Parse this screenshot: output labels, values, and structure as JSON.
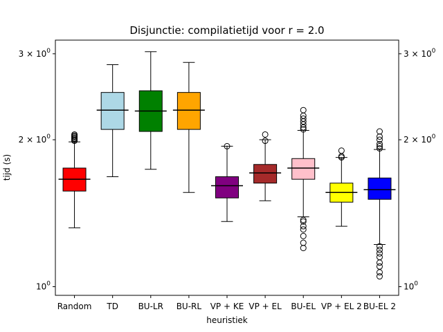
{
  "chart_data": {
    "type": "box",
    "title": "Disjunctie: compilatietijd voor r = 2.0",
    "xlabel": "heuristiek",
    "ylabel": "tijd (s)",
    "y_scale": "log",
    "ylim": [
      0.96,
      3.2
    ],
    "y_ticks": [
      {
        "value": 1,
        "base": "10",
        "exp": "0"
      },
      {
        "value": 2,
        "base": "2 × 10",
        "exp": "0"
      },
      {
        "value": 3,
        "base": "3 × 10",
        "exp": "0"
      }
    ],
    "secondary_y_axis": true,
    "grid": false,
    "categories": [
      "Random",
      "TD",
      "BU-LR",
      "BU-RL",
      "VP + KE",
      "VP + EL",
      "BU-EL",
      "VP + EL 2",
      "BU-EL 2"
    ],
    "boxes": [
      {
        "name": "Random",
        "color": "#ff0000",
        "whisker_low": 1.32,
        "q1": 1.57,
        "median": 1.66,
        "q3": 1.75,
        "whisker_high": 1.98,
        "outliers": [
          1.99,
          2.0,
          2.01,
          2.02,
          2.03,
          2.04,
          2.05
        ]
      },
      {
        "name": "TD",
        "color": "#add8e6",
        "whisker_low": 1.68,
        "q1": 2.1,
        "median": 2.3,
        "q3": 2.5,
        "whisker_high": 2.85,
        "outliers": []
      },
      {
        "name": "BU-LR",
        "color": "#008000",
        "whisker_low": 1.74,
        "q1": 2.08,
        "median": 2.29,
        "q3": 2.52,
        "whisker_high": 3.03,
        "outliers": []
      },
      {
        "name": "BU-RL",
        "color": "#ffa500",
        "whisker_low": 1.56,
        "q1": 2.1,
        "median": 2.3,
        "q3": 2.5,
        "whisker_high": 2.88,
        "outliers": []
      },
      {
        "name": "VP + KE",
        "color": "#800080",
        "whisker_low": 1.36,
        "q1": 1.52,
        "median": 1.61,
        "q3": 1.68,
        "whisker_high": 1.94,
        "outliers": [
          1.94
        ]
      },
      {
        "name": "VP + EL",
        "color": "#a52a2a",
        "whisker_low": 1.5,
        "q1": 1.63,
        "median": 1.71,
        "q3": 1.78,
        "whisker_high": 2.0,
        "outliers": [
          1.99,
          2.05
        ]
      },
      {
        "name": "BU-EL",
        "color": "#ffc0cb",
        "whisker_low": 1.39,
        "q1": 1.66,
        "median": 1.75,
        "q3": 1.83,
        "whisker_high": 2.09,
        "outliers": [
          1.37,
          1.36,
          1.33,
          1.31,
          1.27,
          1.23,
          1.2,
          2.1,
          2.12,
          2.15,
          2.18,
          2.21,
          2.24,
          2.3
        ]
      },
      {
        "name": "VP + EL 2",
        "color": "#ffff00",
        "whisker_low": 1.33,
        "q1": 1.49,
        "median": 1.56,
        "q3": 1.63,
        "whisker_high": 1.84,
        "outliers": [
          1.84,
          1.85,
          1.9
        ]
      },
      {
        "name": "BU-EL 2",
        "color": "#0000ff",
        "whisker_low": 1.22,
        "q1": 1.51,
        "median": 1.58,
        "q3": 1.67,
        "whisker_high": 1.91,
        "outliers": [
          1.21,
          1.19,
          1.17,
          1.15,
          1.12,
          1.1,
          1.07,
          1.05,
          1.92,
          1.94,
          1.96,
          2.0,
          2.03,
          2.08
        ]
      }
    ]
  }
}
